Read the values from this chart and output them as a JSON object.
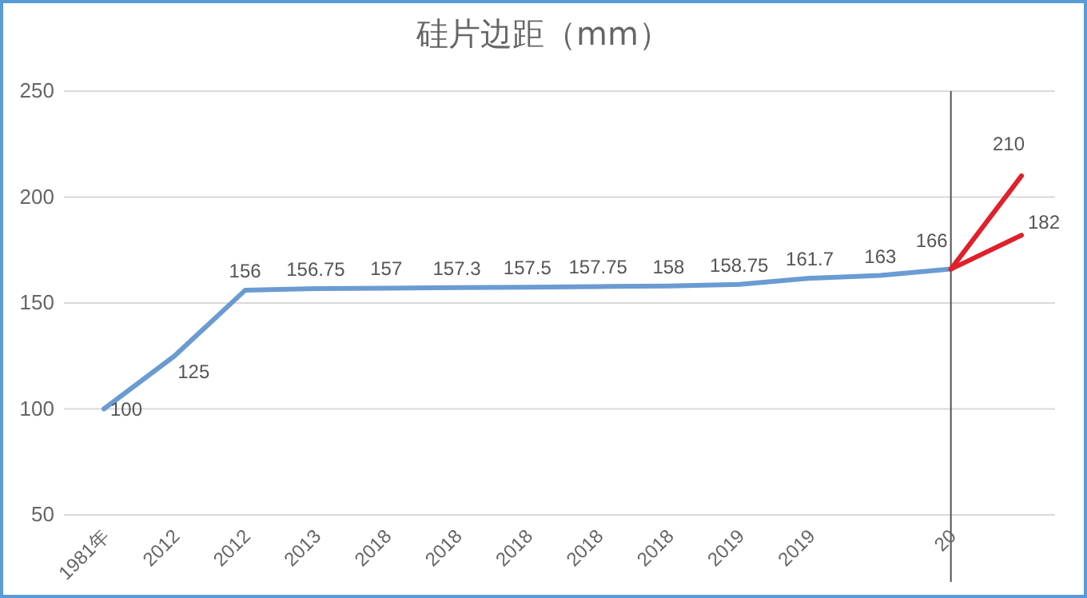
{
  "chart_data": {
    "type": "line",
    "title": "硅片边距（mm）",
    "categories": [
      "1981年",
      "2012",
      "2012",
      "2013",
      "2018",
      "2018",
      "2018",
      "2018",
      "2018",
      "2019",
      "2019",
      null,
      "20",
      null
    ],
    "series": [
      {
        "color": "#6a9bd3",
        "values": [
          100,
          125,
          156,
          156.75,
          157,
          157.3,
          157.5,
          157.75,
          158,
          158.75,
          161.7,
          163,
          166,
          null
        ],
        "value_labels": [
          "100",
          "125",
          "156",
          "156.75",
          "157",
          "157.3",
          "157.5",
          "157.75",
          "158",
          "158.75",
          "161.7",
          "163",
          "166",
          null
        ]
      },
      {
        "color": "#e0202a",
        "values": [
          null,
          null,
          null,
          null,
          null,
          null,
          null,
          null,
          null,
          null,
          null,
          null,
          166,
          210
        ],
        "value_labels": [
          null,
          null,
          null,
          null,
          null,
          null,
          null,
          null,
          null,
          null,
          null,
          null,
          null,
          "210"
        ]
      },
      {
        "color": "#e0202a",
        "values": [
          null,
          null,
          null,
          null,
          null,
          null,
          null,
          null,
          null,
          null,
          null,
          null,
          166,
          182
        ],
        "value_labels": [
          null,
          null,
          null,
          null,
          null,
          null,
          null,
          null,
          null,
          null,
          null,
          null,
          null,
          "182"
        ]
      }
    ],
    "ylim": [
      50,
      250
    ],
    "yticks": [
      50,
      100,
      150,
      200,
      250
    ],
    "grid": "y",
    "marker": "none",
    "line_style": "solid",
    "ref_lines": [
      {
        "axis": "x",
        "value": "20",
        "color": "#555555"
      }
    ]
  }
}
